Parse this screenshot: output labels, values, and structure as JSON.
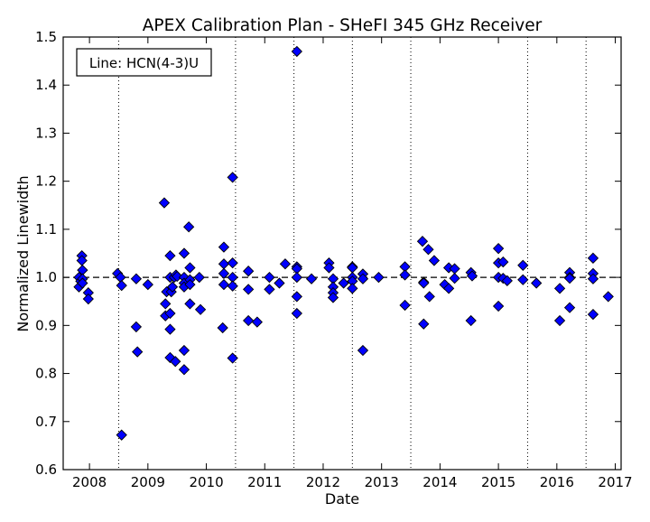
{
  "chart_data": {
    "type": "scatter",
    "title": "APEX Calibration Plan - SHeFI 345 GHz Receiver",
    "xlabel": "Date",
    "ylabel": "Normalized Linewidth",
    "annotation": "Line: HCN(4-3)U",
    "xlim": [
      2007.55,
      2017.1
    ],
    "ylim": [
      0.6,
      1.5
    ],
    "x_ticks": [
      "2008",
      "2009",
      "2010",
      "2011",
      "2012",
      "2013",
      "2014",
      "2015",
      "2016",
      "2017"
    ],
    "y_ticks": [
      "0.6",
      "0.7",
      "0.8",
      "0.9",
      "1.0",
      "1.1",
      "1.2",
      "1.3",
      "1.4",
      "1.5"
    ],
    "reference_line": 1.0,
    "vertical_lines": [
      2008.5,
      2010.5,
      2011.5,
      2012.5,
      2013.5,
      2015.5,
      2016.5
    ],
    "marker": "diamond",
    "marker_color": "#0000ff",
    "grid": false,
    "points": [
      [
        2007.82,
        0.98
      ],
      [
        2007.82,
        1.0
      ],
      [
        2007.85,
        0.992
      ],
      [
        2007.87,
        1.045
      ],
      [
        2007.87,
        1.035
      ],
      [
        2007.88,
        1.015
      ],
      [
        2007.88,
        0.997
      ],
      [
        2007.88,
        0.988
      ],
      [
        2007.98,
        0.968
      ],
      [
        2007.98,
        0.955
      ],
      [
        2008.48,
        1.008
      ],
      [
        2008.53,
        1.0
      ],
      [
        2008.55,
        0.983
      ],
      [
        2008.55,
        0.672
      ],
      [
        2008.8,
        0.997
      ],
      [
        2008.8,
        0.897
      ],
      [
        2008.82,
        0.845
      ],
      [
        2009.0,
        0.985
      ],
      [
        2009.28,
        1.155
      ],
      [
        2009.3,
        0.945
      ],
      [
        2009.3,
        0.92
      ],
      [
        2009.32,
        0.97
      ],
      [
        2009.38,
        1.045
      ],
      [
        2009.38,
        1.0
      ],
      [
        2009.38,
        0.925
      ],
      [
        2009.38,
        0.892
      ],
      [
        2009.38,
        0.833
      ],
      [
        2009.4,
        0.97
      ],
      [
        2009.42,
        0.98
      ],
      [
        2009.45,
        1.0
      ],
      [
        2009.47,
        0.825
      ],
      [
        2009.48,
        1.005
      ],
      [
        2009.5,
        1.002
      ],
      [
        2009.62,
        1.05
      ],
      [
        2009.62,
        1.0
      ],
      [
        2009.62,
        0.988
      ],
      [
        2009.62,
        0.98
      ],
      [
        2009.62,
        0.848
      ],
      [
        2009.62,
        0.808
      ],
      [
        2009.7,
        1.105
      ],
      [
        2009.72,
        1.02
      ],
      [
        2009.72,
        0.995
      ],
      [
        2009.72,
        0.985
      ],
      [
        2009.72,
        0.945
      ],
      [
        2009.88,
        1.0
      ],
      [
        2009.9,
        0.933
      ],
      [
        2010.3,
        1.063
      ],
      [
        2010.3,
        1.028
      ],
      [
        2010.3,
        1.008
      ],
      [
        2010.3,
        0.985
      ],
      [
        2010.28,
        0.895
      ],
      [
        2010.45,
        1.208
      ],
      [
        2010.45,
        1.03
      ],
      [
        2010.45,
        1.0
      ],
      [
        2010.45,
        0.982
      ],
      [
        2010.45,
        0.832
      ],
      [
        2010.72,
        1.013
      ],
      [
        2010.72,
        0.975
      ],
      [
        2010.72,
        0.91
      ],
      [
        2010.87,
        0.907
      ],
      [
        2011.08,
        1.0
      ],
      [
        2011.08,
        0.975
      ],
      [
        2011.25,
        0.988
      ],
      [
        2011.35,
        1.028
      ],
      [
        2011.55,
        1.47
      ],
      [
        2011.55,
        1.022
      ],
      [
        2011.55,
        1.018
      ],
      [
        2011.55,
        1.0
      ],
      [
        2011.55,
        0.96
      ],
      [
        2011.55,
        0.925
      ],
      [
        2011.8,
        0.997
      ],
      [
        2012.1,
        1.03
      ],
      [
        2012.1,
        1.02
      ],
      [
        2012.17,
        0.997
      ],
      [
        2012.17,
        0.98
      ],
      [
        2012.17,
        0.968
      ],
      [
        2012.17,
        0.958
      ],
      [
        2012.35,
        0.988
      ],
      [
        2012.5,
        1.022
      ],
      [
        2012.5,
        1.02
      ],
      [
        2012.5,
        1.0
      ],
      [
        2012.5,
        0.992
      ],
      [
        2012.5,
        0.977
      ],
      [
        2012.68,
        1.007
      ],
      [
        2012.68,
        0.997
      ],
      [
        2012.68,
        0.848
      ],
      [
        2012.95,
        1.0
      ],
      [
        2013.4,
        1.022
      ],
      [
        2013.4,
        1.005
      ],
      [
        2013.4,
        0.942
      ],
      [
        2013.7,
        1.075
      ],
      [
        2013.72,
        0.99
      ],
      [
        2013.72,
        0.988
      ],
      [
        2013.72,
        0.903
      ],
      [
        2013.8,
        1.058
      ],
      [
        2013.82,
        0.96
      ],
      [
        2013.9,
        1.035
      ],
      [
        2014.08,
        0.985
      ],
      [
        2014.15,
        1.02
      ],
      [
        2014.15,
        0.977
      ],
      [
        2014.25,
        1.018
      ],
      [
        2014.25,
        0.998
      ],
      [
        2014.53,
        1.01
      ],
      [
        2014.53,
        0.91
      ],
      [
        2014.55,
        1.003
      ],
      [
        2015.0,
        1.06
      ],
      [
        2015.0,
        1.03
      ],
      [
        2015.0,
        1.0
      ],
      [
        2015.0,
        0.94
      ],
      [
        2015.08,
        1.032
      ],
      [
        2015.08,
        0.998
      ],
      [
        2015.15,
        0.993
      ],
      [
        2015.42,
        1.025
      ],
      [
        2015.42,
        0.995
      ],
      [
        2015.65,
        0.988
      ],
      [
        2016.05,
        0.977
      ],
      [
        2016.05,
        0.91
      ],
      [
        2016.22,
        1.01
      ],
      [
        2016.22,
        1.0
      ],
      [
        2016.22,
        0.998
      ],
      [
        2016.22,
        0.937
      ],
      [
        2016.62,
        1.04
      ],
      [
        2016.62,
        1.008
      ],
      [
        2016.62,
        0.997
      ],
      [
        2016.62,
        0.923
      ],
      [
        2016.88,
        0.96
      ]
    ]
  }
}
